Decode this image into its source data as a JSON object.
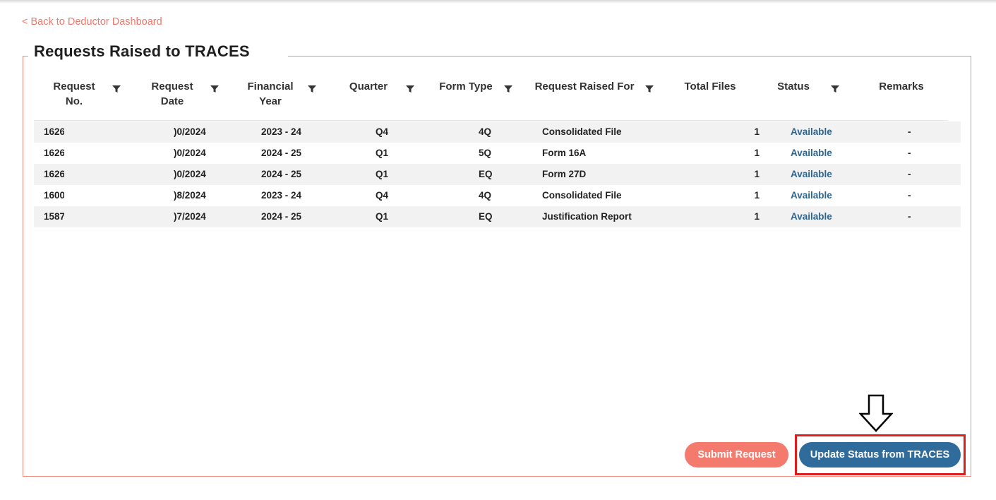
{
  "nav": {
    "back_label": "< Back to Deductor Dashboard"
  },
  "panel": {
    "title": "Requests Raised to TRACES"
  },
  "table": {
    "headers": {
      "request_no_1": "Request",
      "request_no_2": "No.",
      "request_date_1": "Request",
      "request_date_2": "Date",
      "fy_1": "Financial",
      "fy_2": "Year",
      "quarter": "Quarter",
      "form_type": "Form Type",
      "raised_for": "Request Raised For",
      "total_files": "Total Files",
      "status": "Status",
      "remarks": "Remarks"
    },
    "rows": [
      {
        "request_no": "1626",
        "request_date": ")0/2024",
        "fy": "2023 - 24",
        "quarter": "Q4",
        "form_type": "4Q",
        "raised_for": "Consolidated File",
        "total_files": "1",
        "status": "Available",
        "remarks": "-"
      },
      {
        "request_no": "1626",
        "request_date": ")0/2024",
        "fy": "2024 - 25",
        "quarter": "Q1",
        "form_type": "5Q",
        "raised_for": "Form 16A",
        "total_files": "1",
        "status": "Available",
        "remarks": "-"
      },
      {
        "request_no": "1626",
        "request_date": ")0/2024",
        "fy": "2024 - 25",
        "quarter": "Q1",
        "form_type": "EQ",
        "raised_for": "Form 27D",
        "total_files": "1",
        "status": "Available",
        "remarks": "-"
      },
      {
        "request_no": "1600",
        "request_date": ")8/2024",
        "fy": "2023 - 24",
        "quarter": "Q4",
        "form_type": "4Q",
        "raised_for": "Consolidated File",
        "total_files": "1",
        "status": "Available",
        "remarks": "-"
      },
      {
        "request_no": "1587",
        "request_date": ")7/2024",
        "fy": "2024 - 25",
        "quarter": "Q1",
        "form_type": "EQ",
        "raised_for": "Justification Report",
        "total_files": "1",
        "status": "Available",
        "remarks": "-"
      }
    ]
  },
  "actions": {
    "submit_label": "Submit Request",
    "update_label": "Update Status from TRACES"
  },
  "colors": {
    "accent_salmon": "#f47a6e",
    "accent_blue": "#2f6b9b",
    "highlight_red": "#e01b1b"
  }
}
